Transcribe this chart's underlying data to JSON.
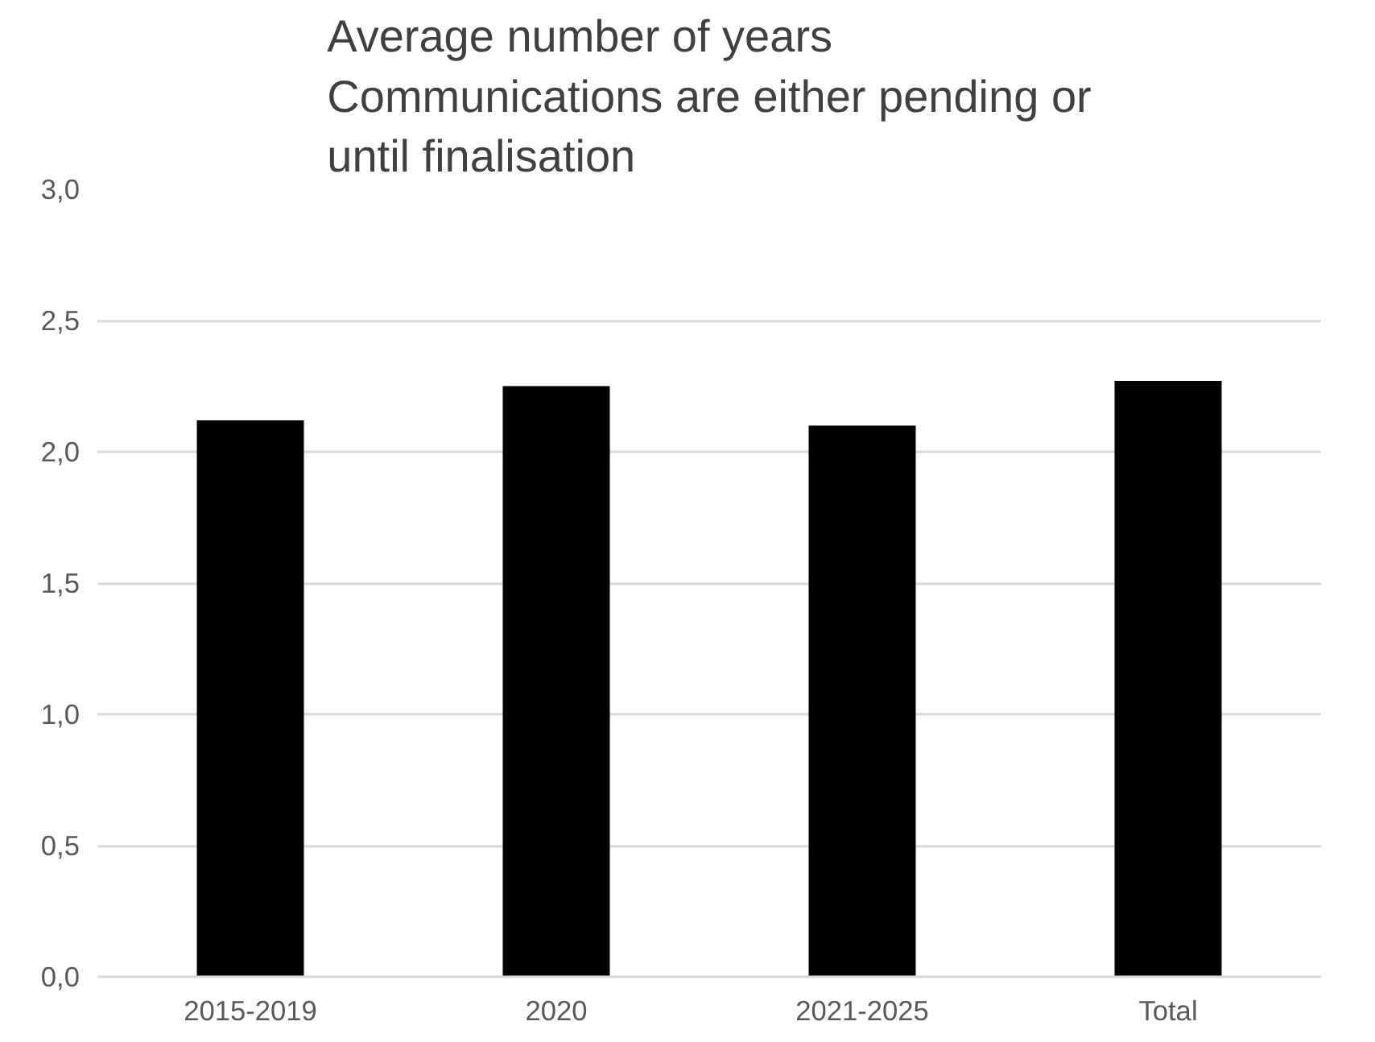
{
  "chart_data": {
    "type": "bar",
    "title": "Average number of years\nCommunications are either pending or\nuntil finalisation",
    "categories": [
      "2015-2019",
      "2020",
      "2021-2025",
      "Total"
    ],
    "values": [
      2.12,
      2.25,
      2.1,
      2.27
    ],
    "color": "#000000",
    "ylim": [
      0,
      3
    ],
    "yticks": [
      {
        "value": 0,
        "label": "0,0"
      },
      {
        "value": 0.5,
        "label": "0,5"
      },
      {
        "value": 1,
        "label": "1,0"
      },
      {
        "value": 1.5,
        "label": "1,5"
      },
      {
        "value": 2,
        "label": "2,0"
      },
      {
        "value": 2.5,
        "label": "2,5"
      },
      {
        "value": 3,
        "label": "3,0"
      }
    ],
    "grid": "y"
  }
}
